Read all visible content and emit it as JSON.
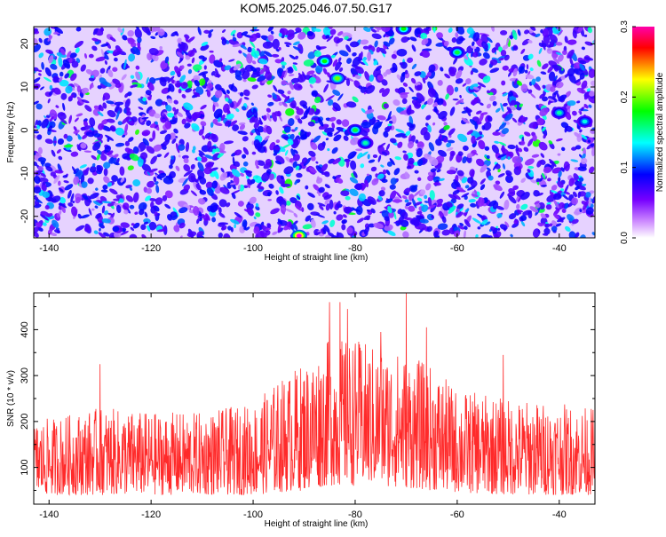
{
  "title": "KOM5.2025.046.07.50.G17",
  "chart_data": [
    {
      "type": "heatmap",
      "xlabel": "Height of straight line (km)",
      "ylabel": "Frequency (Hz)",
      "xlim": [
        -143,
        -33
      ],
      "ylim": [
        -25,
        24
      ],
      "x_ticks": [
        -140,
        -120,
        -100,
        -80,
        -60,
        -40
      ],
      "y_ticks": [
        -20,
        -10,
        0,
        10,
        20
      ],
      "grid": false,
      "colorbar": {
        "label": "Normalized spectral amplitude",
        "range": [
          0.0,
          0.3
        ],
        "ticks": [
          0.0,
          0.1,
          0.2,
          0.3
        ],
        "colormap": [
          "#ffffff",
          "#7700ff",
          "#0000ff",
          "#00ffff",
          "#00ff00",
          "#ffff00",
          "#ff0000",
          "#ff00ff"
        ]
      },
      "hotspots": [
        {
          "x": -83.5,
          "y": 12,
          "value": 0.2
        },
        {
          "x": -86,
          "y": 16,
          "value": 0.18
        },
        {
          "x": -80,
          "y": 0,
          "value": 0.17
        },
        {
          "x": -91,
          "y": -24.5,
          "value": 0.3
        },
        {
          "x": -60,
          "y": 18,
          "value": 0.17
        },
        {
          "x": -40,
          "y": 4,
          "value": 0.15
        },
        {
          "x": -35,
          "y": 2,
          "value": 0.14
        },
        {
          "x": -70.5,
          "y": 23.5,
          "value": 0.18
        },
        {
          "x": -78,
          "y": -3,
          "value": 0.15
        }
      ]
    },
    {
      "type": "line",
      "xlabel": "Height of straight line (km)",
      "ylabel": "SNR (10 * v/v)",
      "xlim": [
        -143,
        -33
      ],
      "ylim": [
        20,
        480
      ],
      "x_ticks": [
        -140,
        -120,
        -100,
        -80,
        -60,
        -40
      ],
      "y_ticks": [
        100,
        200,
        300,
        400
      ],
      "grid": false,
      "line_color": "#ff2a2a",
      "series_envelope": {
        "x": [
          -143,
          -130,
          -120,
          -110,
          -100,
          -95,
          -90,
          -85,
          -80,
          -75,
          -70,
          -65,
          -60,
          -50,
          -40,
          -33
        ],
        "y_low": [
          40,
          40,
          40,
          40,
          40,
          45,
          50,
          60,
          60,
          60,
          55,
          50,
          45,
          40,
          40,
          40
        ],
        "y_high": [
          200,
          230,
          220,
          220,
          240,
          290,
          330,
          380,
          380,
          360,
          350,
          320,
          270,
          250,
          240,
          230
        ]
      },
      "peaks": [
        {
          "x": -130,
          "y": 325
        },
        {
          "x": -85,
          "y": 460
        },
        {
          "x": -83,
          "y": 460
        },
        {
          "x": -81.5,
          "y": 445
        },
        {
          "x": -70,
          "y": 480
        },
        {
          "x": -75,
          "y": 395
        },
        {
          "x": -66,
          "y": 405
        },
        {
          "x": -51,
          "y": 345
        }
      ]
    }
  ]
}
